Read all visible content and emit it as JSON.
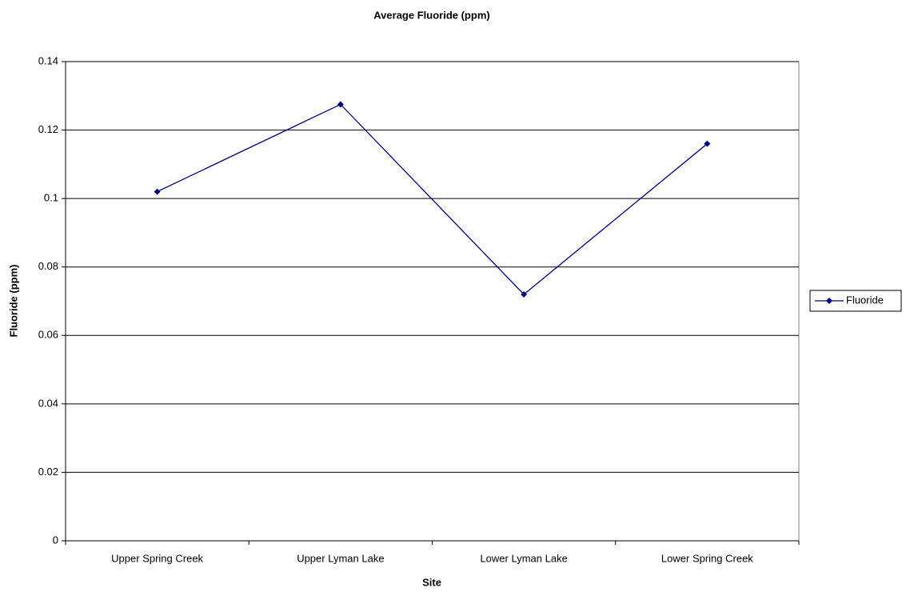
{
  "chart_data": {
    "type": "line",
    "title": "Average Fluoride (ppm)",
    "x_label": "Site",
    "y_label": "Fluoride (ppm)",
    "categories": [
      "Upper Spring Creek",
      "Upper Lyman Lake",
      "Lower Lyman Lake",
      "Lower Spring Creek"
    ],
    "series": [
      {
        "name": "Fluoride",
        "color": "#000080",
        "values": [
          0.102,
          0.1275,
          0.072,
          0.116
        ]
      }
    ],
    "ylim": [
      0,
      0.14
    ],
    "yticks": [
      0,
      0.02,
      0.04,
      0.06,
      0.08,
      0.1,
      0.12,
      0.14
    ],
    "grid": true,
    "legend": "right"
  }
}
